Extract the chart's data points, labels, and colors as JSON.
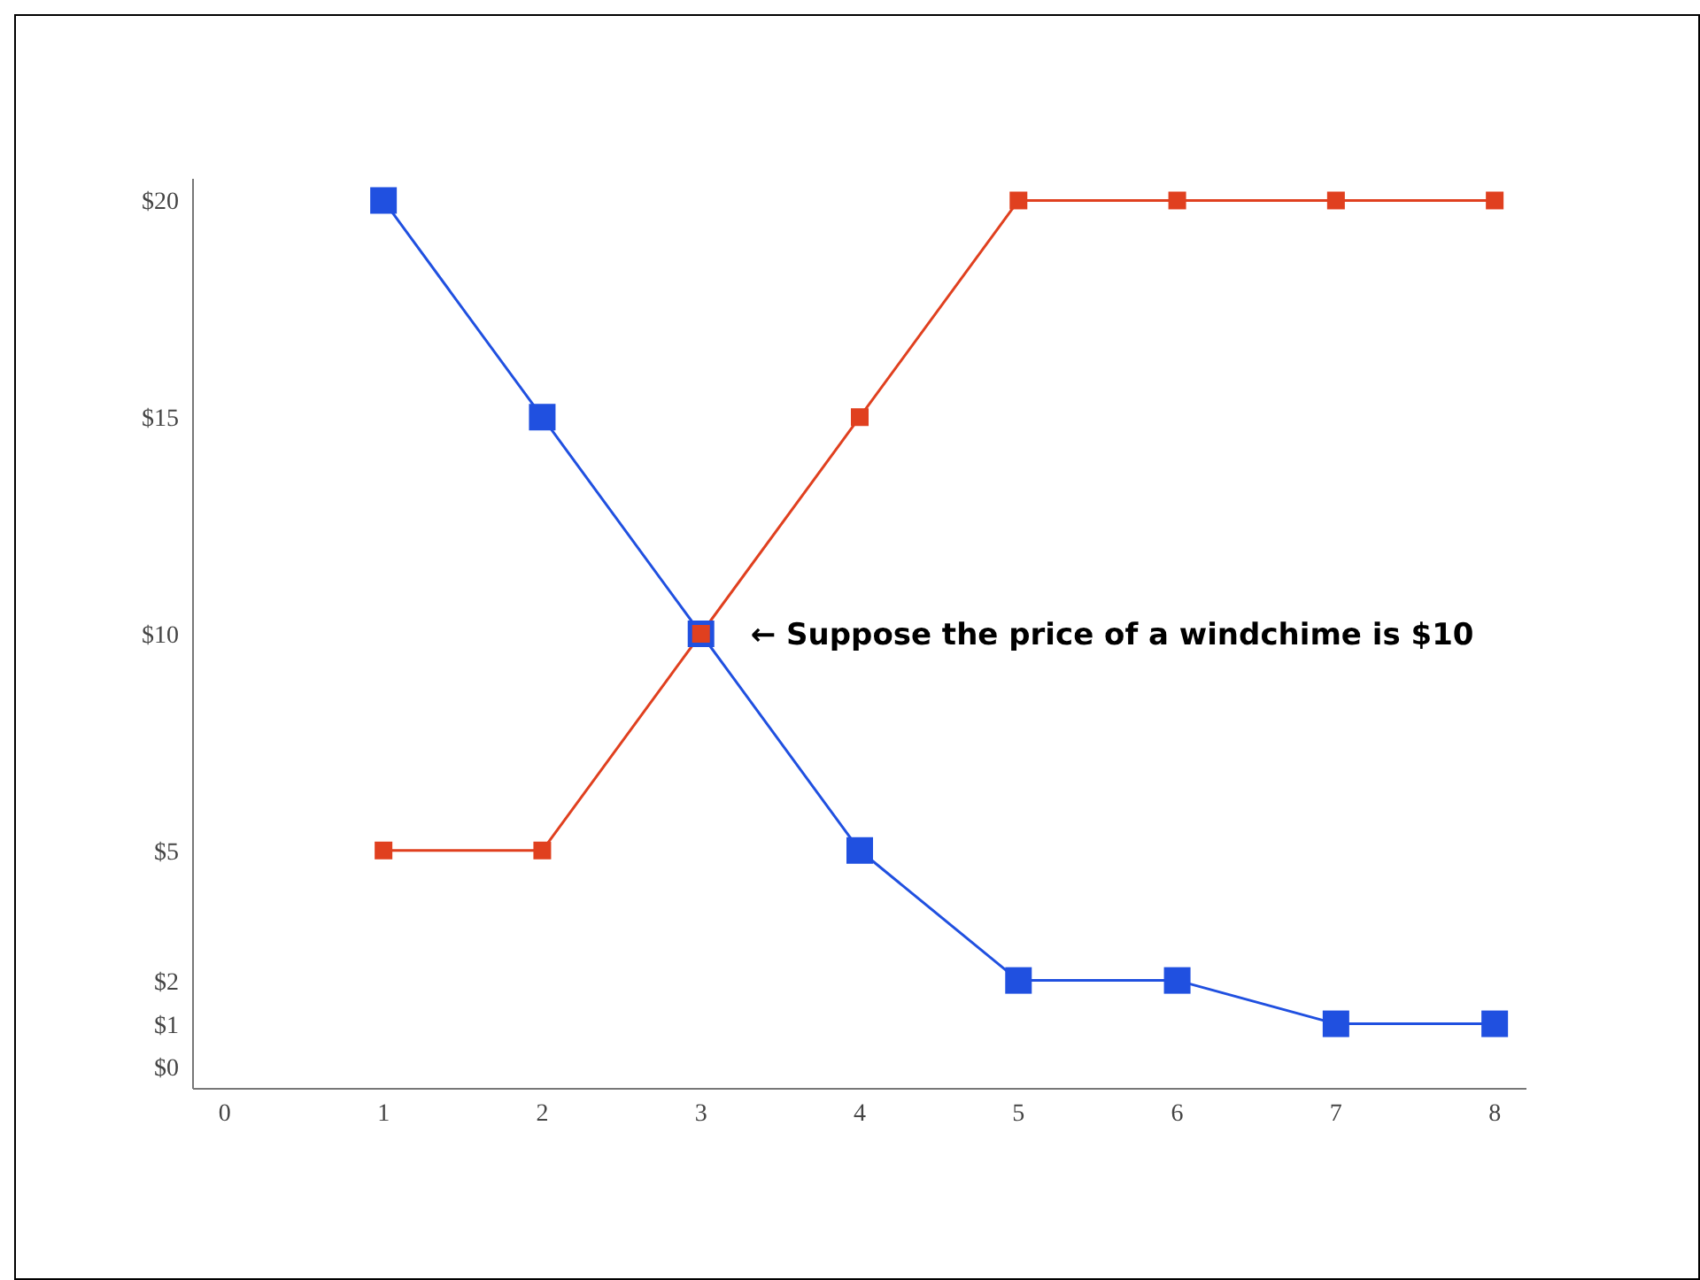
{
  "chart_data": {
    "type": "line",
    "x": [
      1,
      2,
      3,
      4,
      5,
      6,
      7,
      8
    ],
    "series": [
      {
        "color": "#2050e0",
        "values": [
          20,
          15,
          10,
          5,
          2,
          2,
          1,
          1
        ]
      },
      {
        "color": "#e0401f",
        "values": [
          5,
          5,
          10,
          15,
          20,
          20,
          20,
          20
        ]
      }
    ],
    "xlim": [
      -0.2,
      8.2
    ],
    "xticks": [
      0,
      1,
      2,
      3,
      4,
      5,
      6,
      7,
      8
    ],
    "ylim": [
      -0.5,
      20.5
    ],
    "yticks": [
      {
        "value": 0,
        "label": "$0"
      },
      {
        "value": 1,
        "label": "$1"
      },
      {
        "value": 2,
        "label": "$2"
      },
      {
        "value": 5,
        "label": "$5"
      },
      {
        "value": 10,
        "label": "$10"
      },
      {
        "value": 15,
        "label": "$15"
      },
      {
        "value": 20,
        "label": "$20"
      }
    ],
    "annotations": [
      {
        "text": "← Suppose the price of a windchime is $10",
        "x": 3,
        "y": 10
      }
    ],
    "grid": false,
    "legend": false,
    "marker": "square",
    "line_style": "solid"
  }
}
